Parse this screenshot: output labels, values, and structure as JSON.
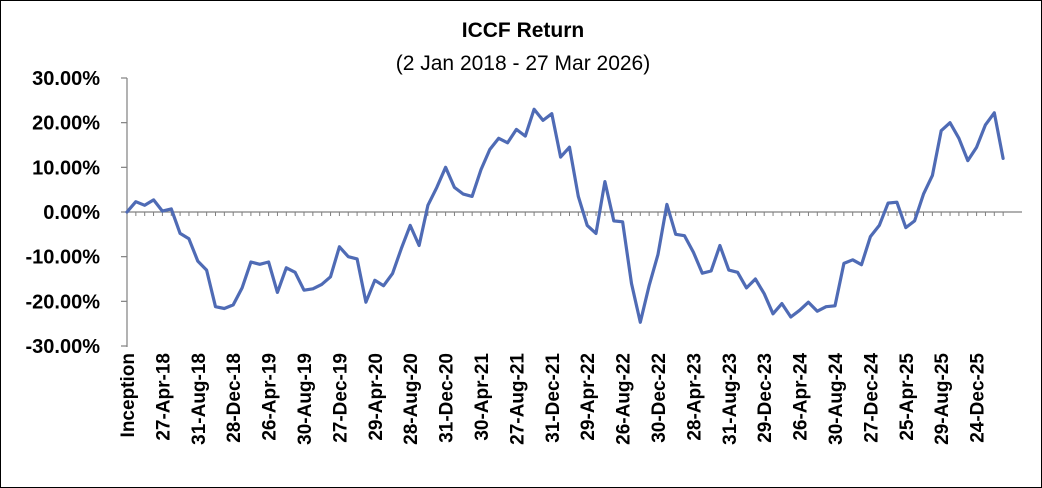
{
  "chart_data": {
    "type": "line",
    "title": "ICCF Return",
    "subtitle": "(2 Jan 2018 - 27 Mar 2026)",
    "xlabel": "",
    "ylabel": "",
    "ylim": [
      -0.3,
      0.3
    ],
    "y_ticks": [
      "30.00%",
      "20.00%",
      "10.00%",
      "0.00%",
      "-10.00%",
      "-20.00%",
      "-30.00%"
    ],
    "y_tick_values": [
      0.3,
      0.2,
      0.1,
      0.0,
      -0.1,
      -0.2,
      -0.3
    ],
    "x_tick_labels": [
      "Inception",
      "27-Apr-18",
      "31-Aug-18",
      "28-Dec-18",
      "26-Apr-19",
      "30-Aug-19",
      "27-Dec-19",
      "29-Apr-20",
      "28-Aug-20",
      "31-Dec-20",
      "30-Apr-21",
      "27-Aug-21",
      "31-Dec-21",
      "29-Apr-22",
      "26-Aug-22",
      "30-Dec-22",
      "28-Apr-23",
      "31-Aug-23",
      "29-Dec-23",
      "26-Apr-24",
      "30-Aug-24",
      "27-Dec-24",
      "25-Apr-25",
      "29-Aug-25",
      "24-Dec-25"
    ],
    "x_tick_index": [
      0,
      4,
      8,
      12,
      16,
      20,
      24,
      28,
      32,
      36,
      40,
      44,
      48,
      52,
      56,
      60,
      64,
      68,
      72,
      76,
      80,
      84,
      88,
      92,
      96
    ],
    "grid": false,
    "legend": "none",
    "series": [
      {
        "color": "#4F6BB5",
        "values": [
          0.0,
          0.023,
          0.015,
          0.027,
          0.002,
          0.007,
          -0.048,
          -0.06,
          -0.11,
          -0.13,
          -0.212,
          -0.216,
          -0.208,
          -0.17,
          -0.112,
          -0.117,
          -0.112,
          -0.18,
          -0.125,
          -0.135,
          -0.175,
          -0.172,
          -0.162,
          -0.145,
          -0.078,
          -0.1,
          -0.105,
          -0.202,
          -0.153,
          -0.165,
          -0.138,
          -0.082,
          -0.03,
          -0.075,
          0.015,
          0.055,
          0.1,
          0.055,
          0.04,
          0.035,
          0.095,
          0.14,
          0.165,
          0.155,
          0.185,
          0.17,
          0.23,
          0.205,
          0.22,
          0.123,
          0.145,
          0.035,
          -0.03,
          -0.048,
          0.068,
          -0.02,
          -0.022,
          -0.16,
          -0.247,
          -0.165,
          -0.095,
          0.017,
          -0.05,
          -0.053,
          -0.09,
          -0.137,
          -0.132,
          -0.075,
          -0.13,
          -0.135,
          -0.17,
          -0.15,
          -0.183,
          -0.228,
          -0.205,
          -0.235,
          -0.22,
          -0.202,
          -0.222,
          -0.212,
          -0.21,
          -0.115,
          -0.107,
          -0.118,
          -0.055,
          -0.03,
          0.02,
          0.022,
          -0.035,
          -0.02,
          0.04,
          0.082,
          0.182,
          0.2,
          0.165,
          0.115,
          0.145,
          0.195,
          0.222,
          0.12
        ]
      }
    ]
  }
}
